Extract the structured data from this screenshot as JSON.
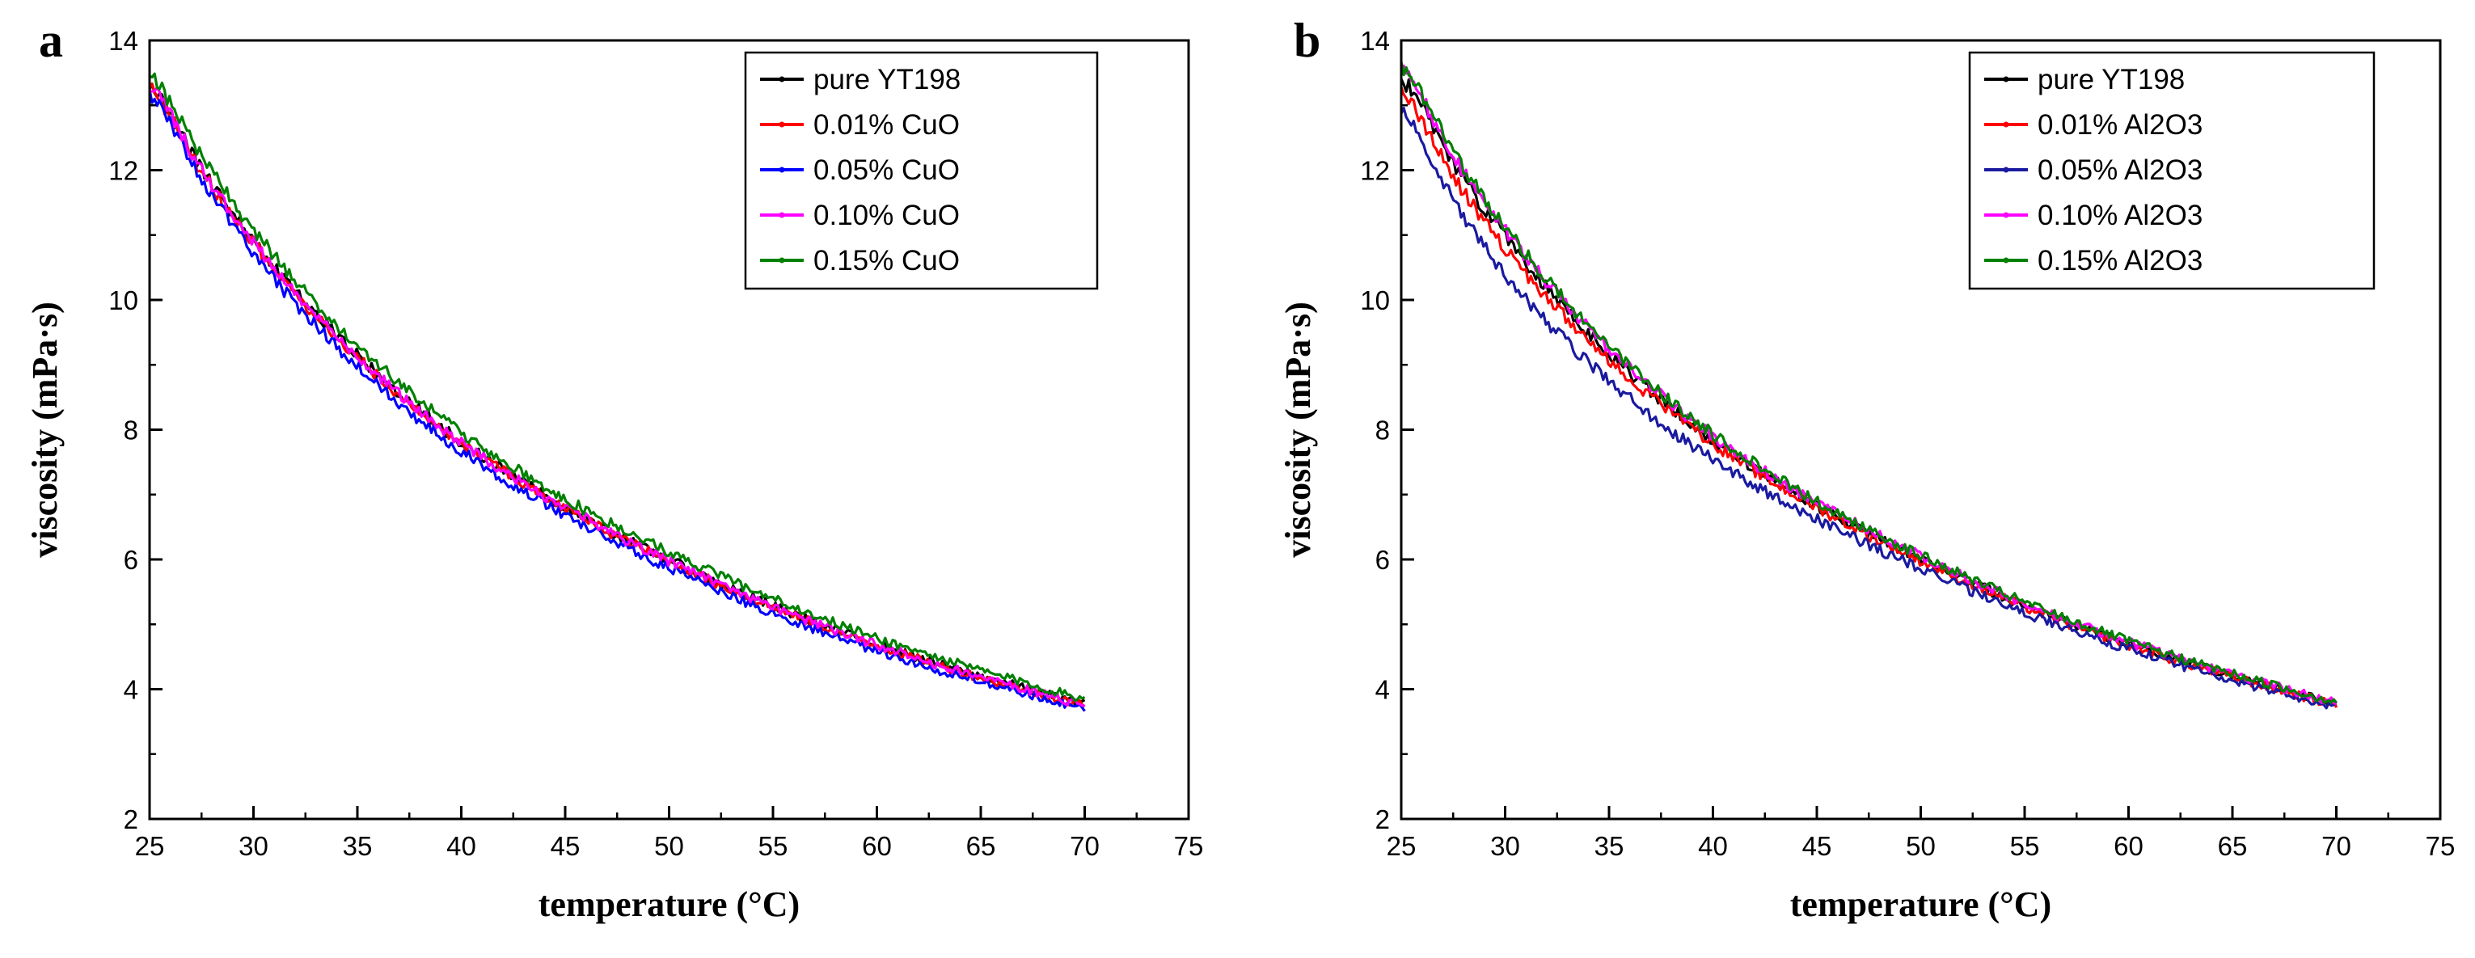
{
  "chart_data": [
    {
      "type": "line",
      "panel_label": "a",
      "xlabel": "temperature (°C)",
      "ylabel": "viscosity (mPa·s)",
      "xlim": [
        25,
        75
      ],
      "ylim": [
        2,
        14
      ],
      "x_ticks": [
        "25",
        "30",
        "35",
        "40",
        "45",
        "50",
        "55",
        "60",
        "65",
        "70",
        "75"
      ],
      "y_ticks": [
        "2",
        "4",
        "6",
        "8",
        "10",
        "12",
        "14"
      ],
      "grid": false,
      "legend_position": "top-right",
      "x": [
        25,
        27.5,
        30,
        32.5,
        35,
        37.5,
        40,
        42.5,
        45,
        47.5,
        50,
        52.5,
        55,
        57.5,
        60,
        62.5,
        65,
        67.5,
        70
      ],
      "series": [
        {
          "name": "pure YT198",
          "color": "#000000",
          "values": [
            13.3,
            12.02,
            10.92,
            9.96,
            9.14,
            8.43,
            7.81,
            7.28,
            6.81,
            6.38,
            5.99,
            5.62,
            5.28,
            4.97,
            4.69,
            4.43,
            4.2,
            3.98,
            3.78
          ]
        },
        {
          "name": "0.01% CuO",
          "color": "#ff0000",
          "values": [
            13.25,
            11.98,
            10.88,
            9.93,
            9.11,
            8.4,
            7.79,
            7.26,
            6.79,
            6.36,
            5.97,
            5.6,
            5.26,
            4.95,
            4.67,
            4.41,
            4.18,
            3.96,
            3.76
          ]
        },
        {
          "name": "0.05% CuO",
          "color": "#0000ff",
          "values": [
            13.15,
            11.85,
            10.72,
            9.78,
            8.98,
            8.28,
            7.68,
            7.15,
            6.69,
            6.26,
            5.87,
            5.51,
            5.17,
            4.87,
            4.59,
            4.34,
            4.12,
            3.91,
            3.72
          ]
        },
        {
          "name": "0.10% CuO",
          "color": "#ff00ff",
          "values": [
            13.28,
            12.0,
            10.9,
            9.95,
            9.13,
            8.42,
            7.8,
            7.27,
            6.8,
            6.37,
            5.98,
            5.61,
            5.27,
            4.96,
            4.68,
            4.42,
            4.19,
            3.97,
            3.77
          ]
        },
        {
          "name": "0.15% CuO",
          "color": "#008000",
          "values": [
            13.45,
            12.2,
            11.08,
            10.12,
            9.3,
            8.58,
            7.96,
            7.42,
            6.94,
            6.5,
            6.11,
            5.74,
            5.4,
            5.08,
            4.79,
            4.53,
            4.29,
            4.07,
            3.86
          ]
        }
      ]
    },
    {
      "type": "line",
      "panel_label": "b",
      "xlabel": "temperature (°C)",
      "ylabel": "viscosity (mPa·s)",
      "xlim": [
        25,
        75
      ],
      "ylim": [
        2,
        14
      ],
      "x_ticks": [
        "25",
        "30",
        "35",
        "40",
        "45",
        "50",
        "55",
        "60",
        "65",
        "70",
        "75"
      ],
      "y_ticks": [
        "2",
        "4",
        "6",
        "8",
        "10",
        "12",
        "14"
      ],
      "grid": false,
      "legend_position": "top-right",
      "x": [
        25,
        27.5,
        30,
        32.5,
        35,
        37.5,
        40,
        42.5,
        45,
        47.5,
        50,
        52.5,
        55,
        57.5,
        60,
        62.5,
        65,
        67.5,
        70
      ],
      "series": [
        {
          "name": "pure YT198",
          "color": "#000000",
          "values": [
            13.4,
            12.1,
            10.97,
            10.0,
            9.17,
            8.46,
            7.84,
            7.3,
            6.83,
            6.4,
            6.0,
            5.63,
            5.29,
            4.98,
            4.7,
            4.44,
            4.21,
            3.99,
            3.79
          ]
        },
        {
          "name": "0.01% Al2O3",
          "color": "#ff0000",
          "values": [
            13.2,
            11.9,
            10.8,
            9.87,
            9.08,
            8.39,
            7.79,
            7.26,
            6.8,
            6.37,
            5.98,
            5.61,
            5.27,
            4.96,
            4.68,
            4.42,
            4.19,
            3.97,
            3.77
          ]
        },
        {
          "name": "0.05% Al2O3",
          "color": "#1a1aa0",
          "values": [
            12.95,
            11.55,
            10.4,
            9.5,
            8.75,
            8.1,
            7.54,
            7.05,
            6.62,
            6.22,
            5.86,
            5.51,
            5.18,
            4.89,
            4.62,
            4.37,
            4.14,
            3.93,
            3.74
          ]
        },
        {
          "name": "0.10% Al2O3",
          "color": "#ff00ff",
          "values": [
            13.55,
            12.22,
            11.07,
            10.09,
            9.25,
            8.53,
            7.9,
            7.36,
            6.88,
            6.45,
            6.05,
            5.68,
            5.33,
            5.02,
            4.73,
            4.47,
            4.23,
            4.01,
            3.81
          ]
        },
        {
          "name": "0.15% Al2O3",
          "color": "#008000",
          "values": [
            13.6,
            12.28,
            11.12,
            10.13,
            9.28,
            8.56,
            7.93,
            7.38,
            6.9,
            6.46,
            6.06,
            5.69,
            5.34,
            5.03,
            4.74,
            4.48,
            4.24,
            4.02,
            3.82
          ]
        }
      ]
    }
  ]
}
